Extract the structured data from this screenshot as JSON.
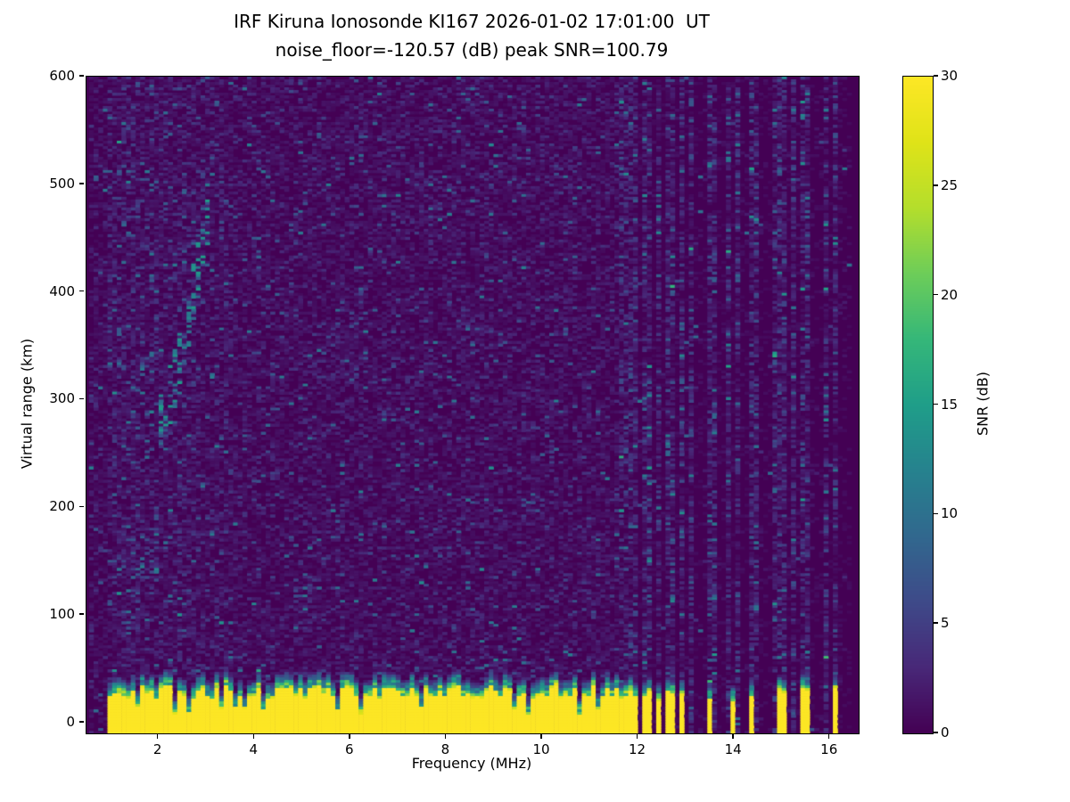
{
  "chart_data": {
    "type": "heatmap",
    "title": "IRF Kiruna Ionosonde KI167 2026-01-02 17:01:00  UT",
    "subtitle": "noise_floor=-120.57 (dB) peak SNR=100.79",
    "xlabel": "Frequency (MHz)",
    "ylabel": "Virtual range (km)",
    "colorbar_label": "SNR (dB)",
    "x_range": [
      0.5,
      16.6
    ],
    "y_range": [
      -10,
      600
    ],
    "x_ticks": [
      2,
      4,
      6,
      8,
      10,
      12,
      14,
      16
    ],
    "y_ticks": [
      0,
      100,
      200,
      300,
      400,
      500,
      600
    ],
    "colorbar_ticks": [
      0,
      5,
      10,
      15,
      20,
      25,
      30
    ],
    "color_scale": {
      "name": "viridis",
      "min": 0,
      "max": 30
    },
    "features": {
      "noise_floor_db": -120.57,
      "peak_snr_db": 100.79,
      "data_extent_mhz": [
        0.55,
        16.45
      ],
      "clutter_continuous_max_mhz": 11.62,
      "clutter_top_km": [
        22,
        35
      ],
      "clutter_stripes_mhz": [
        11.7,
        11.83,
        11.96,
        12.1,
        12.24,
        12.42,
        12.58,
        12.76,
        12.95,
        13.5,
        13.98,
        14.35,
        15.0,
        15.48,
        15.56,
        16.08
      ],
      "rfi_noise_stripes_mhz": [
        11.7,
        11.83,
        11.96,
        12.1,
        12.24,
        12.42,
        12.58,
        12.76,
        12.95,
        13.1,
        13.5,
        13.57,
        13.9,
        14.1,
        14.35,
        14.5,
        14.85,
        15.0,
        15.2,
        15.48,
        15.9,
        16.08
      ],
      "echo_trace": {
        "f_mhz": [
          2.05,
          3.05
        ],
        "r_km": [
          288,
          480
        ],
        "snr_db": [
          6,
          15
        ]
      },
      "echo_low": {
        "f_mhz": [
          1.35,
          2.0
        ],
        "r_km": [
          105,
          165
        ],
        "snr_db": [
          5,
          12
        ]
      }
    }
  }
}
